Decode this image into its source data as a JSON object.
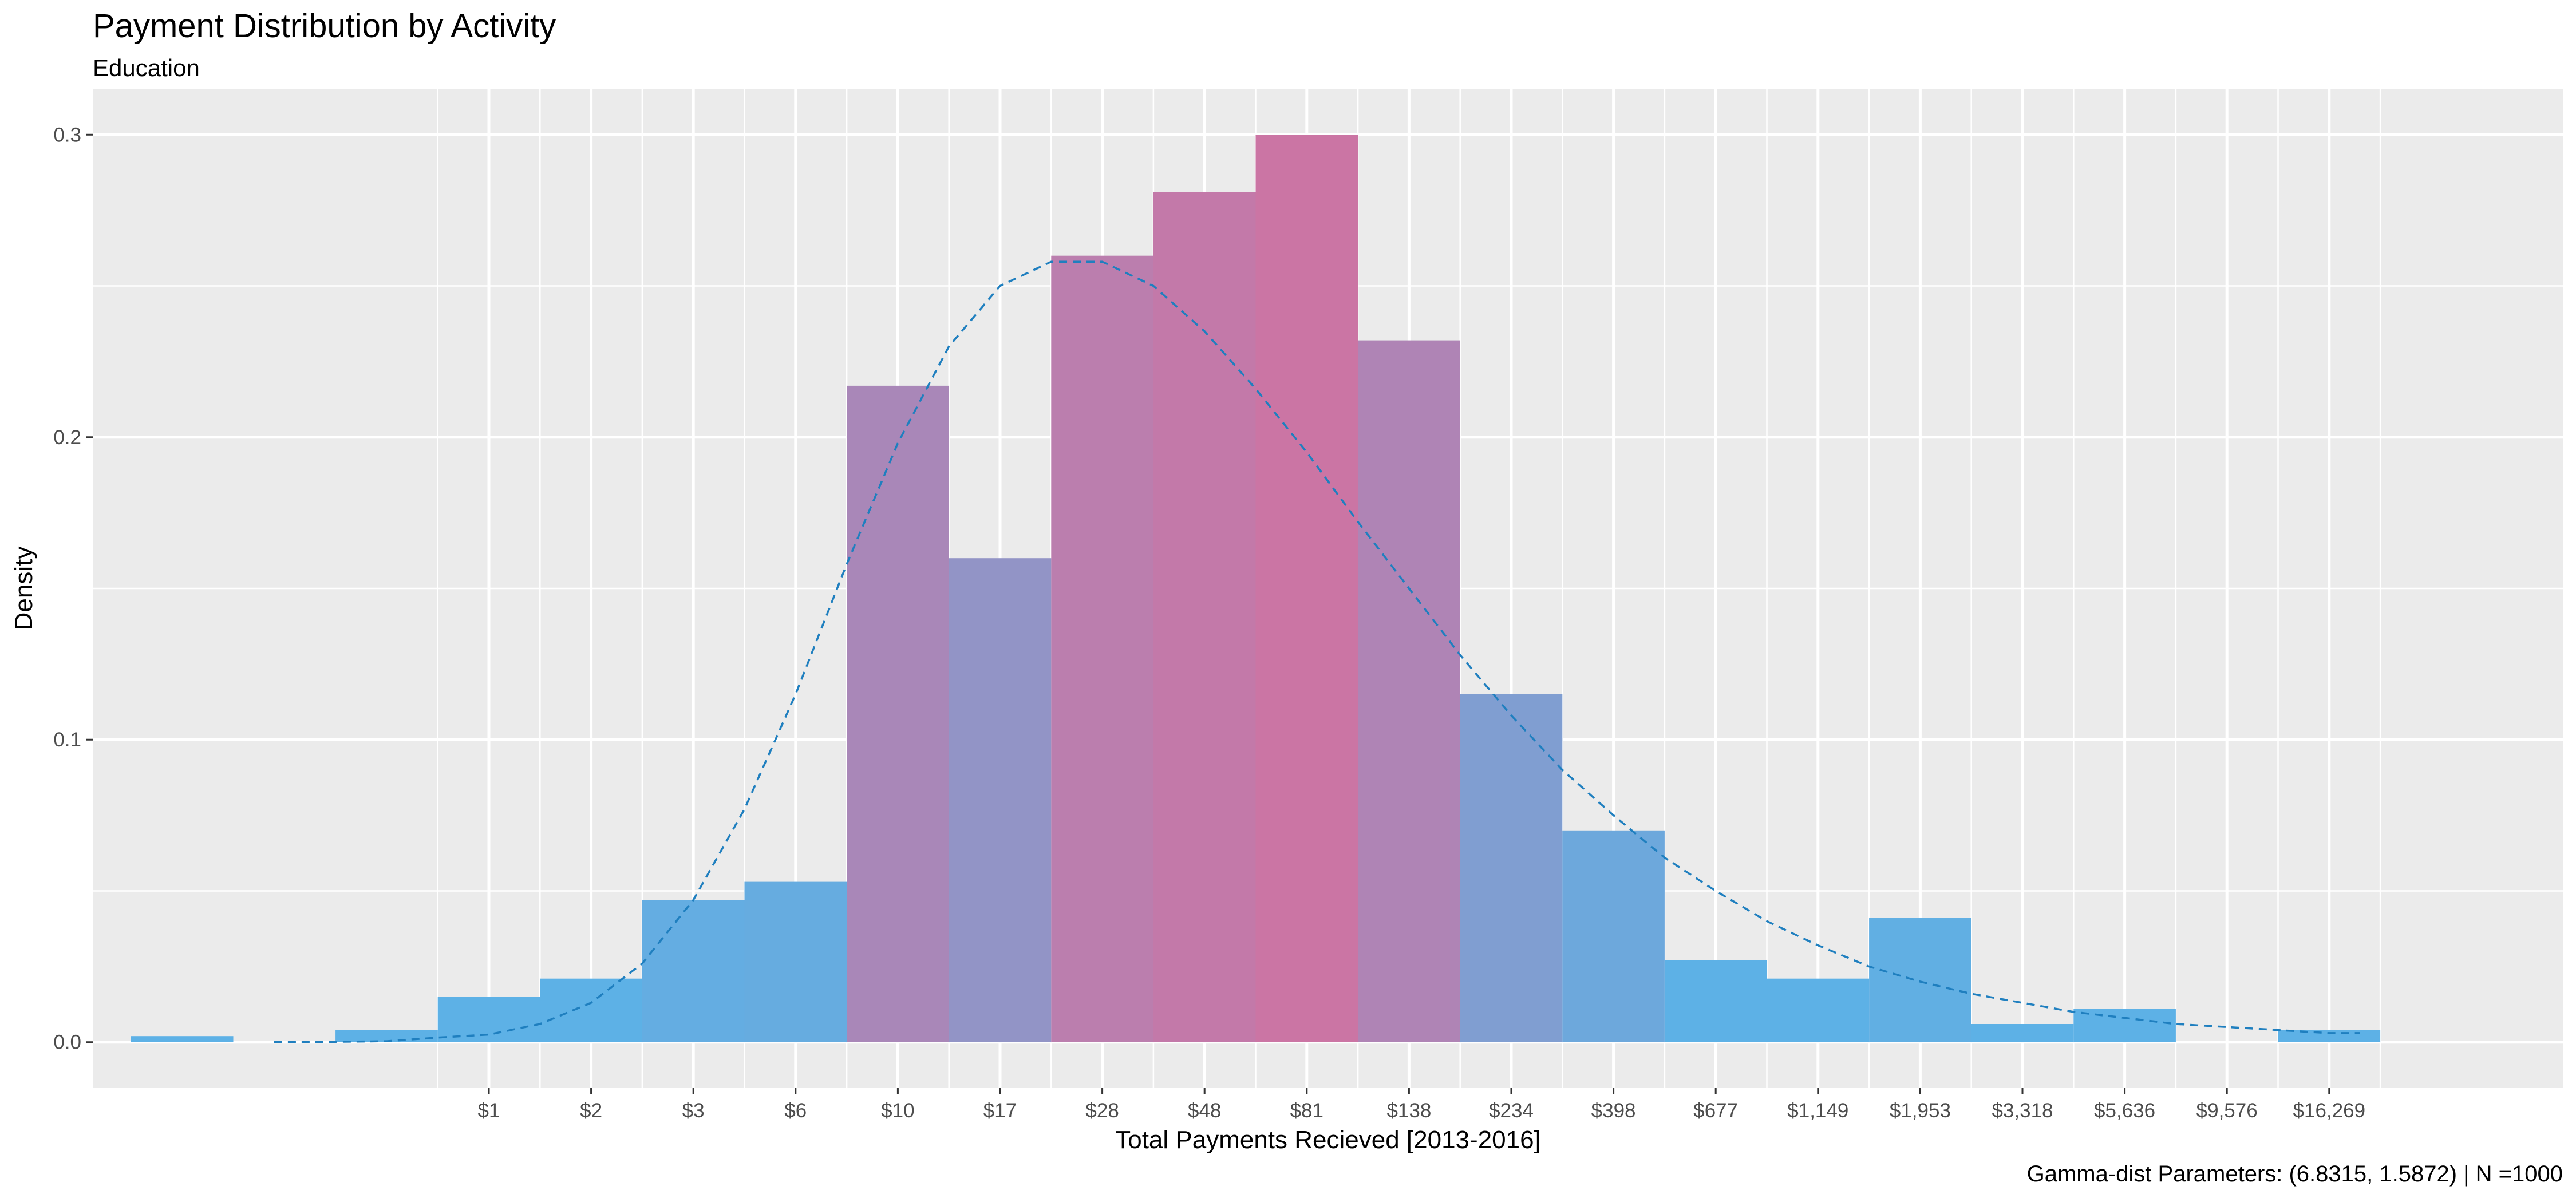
{
  "chart_data": {
    "type": "bar",
    "title": "Payment Distribution by Activity",
    "subtitle": "Education",
    "xlabel": "Total Payments Recieved [2013-2016]",
    "ylabel": "Density",
    "caption": "Gamma-dist Parameters: (6.8315, 1.5872) | N =1000",
    "x_scale": "log",
    "x_tick_labels": [
      "$1",
      "$2",
      "$3",
      "$6",
      "$10",
      "$17",
      "$28",
      "$48",
      "$81",
      "$138",
      "$234",
      "$398",
      "$677",
      "$1,149",
      "$1,953",
      "$3,318",
      "$5,636",
      "$9,576",
      "$16,269"
    ],
    "y_ticks": [
      0.0,
      0.1,
      0.2,
      0.3
    ],
    "y_tick_labels": [
      "0.0",
      "0.1",
      "0.2",
      "0.3"
    ],
    "ylim": [
      -0.015,
      0.315
    ],
    "grid": true,
    "legend": "none",
    "bars": [
      {
        "bin": -3,
        "density": 0.002
      },
      {
        "bin": -2,
        "density": 0.0
      },
      {
        "bin": -1,
        "density": 0.004
      },
      {
        "bin": 0,
        "density": 0.015
      },
      {
        "bin": 1,
        "density": 0.021
      },
      {
        "bin": 2,
        "density": 0.047
      },
      {
        "bin": 3,
        "density": 0.053
      },
      {
        "bin": 4,
        "density": 0.217
      },
      {
        "bin": 5,
        "density": 0.16
      },
      {
        "bin": 6,
        "density": 0.26
      },
      {
        "bin": 7,
        "density": 0.281
      },
      {
        "bin": 8,
        "density": 0.3
      },
      {
        "bin": 9,
        "density": 0.232
      },
      {
        "bin": 10,
        "density": 0.115
      },
      {
        "bin": 11,
        "density": 0.07
      },
      {
        "bin": 12,
        "density": 0.027
      },
      {
        "bin": 13,
        "density": 0.021
      },
      {
        "bin": 14,
        "density": 0.041
      },
      {
        "bin": 15,
        "density": 0.006
      },
      {
        "bin": 16,
        "density": 0.011
      },
      {
        "bin": 17,
        "density": 0.0
      },
      {
        "bin": 18,
        "density": 0.004
      }
    ],
    "fit_curve": {
      "style": "dashed",
      "color": "#1F7FBF",
      "points": [
        [
          -2.1,
          0.0
        ],
        [
          -1.5,
          0.0001
        ],
        [
          -1.0,
          0.0003
        ],
        [
          -0.5,
          0.0015
        ],
        [
          0.0,
          0.0025
        ],
        [
          0.5,
          0.006
        ],
        [
          1.0,
          0.013
        ],
        [
          1.5,
          0.026
        ],
        [
          2.0,
          0.047
        ],
        [
          2.5,
          0.077
        ],
        [
          3.0,
          0.115
        ],
        [
          3.5,
          0.158
        ],
        [
          4.0,
          0.198
        ],
        [
          4.5,
          0.23
        ],
        [
          5.0,
          0.25
        ],
        [
          5.5,
          0.258
        ],
        [
          6.0,
          0.258
        ],
        [
          6.5,
          0.25
        ],
        [
          7.0,
          0.235
        ],
        [
          7.5,
          0.216
        ],
        [
          8.0,
          0.195
        ],
        [
          8.5,
          0.172
        ],
        [
          9.0,
          0.15
        ],
        [
          9.5,
          0.128
        ],
        [
          10.0,
          0.108
        ],
        [
          10.5,
          0.09
        ],
        [
          11.0,
          0.075
        ],
        [
          11.5,
          0.061
        ],
        [
          12.0,
          0.05
        ],
        [
          12.5,
          0.04
        ],
        [
          13.0,
          0.032
        ],
        [
          13.5,
          0.025
        ],
        [
          14.0,
          0.02
        ],
        [
          14.5,
          0.016
        ],
        [
          15.0,
          0.013
        ],
        [
          15.5,
          0.01
        ],
        [
          16.0,
          0.008
        ],
        [
          16.5,
          0.006
        ],
        [
          17.0,
          0.005
        ],
        [
          17.5,
          0.004
        ],
        [
          18.0,
          0.003
        ],
        [
          18.3,
          0.003
        ]
      ]
    },
    "colors": {
      "panel": "#EBEBEB",
      "grid_major": "#FFFFFF",
      "low_density": "#5DB1E6",
      "high_density": "#CB75A4",
      "curve": "#1F7FBF"
    }
  }
}
